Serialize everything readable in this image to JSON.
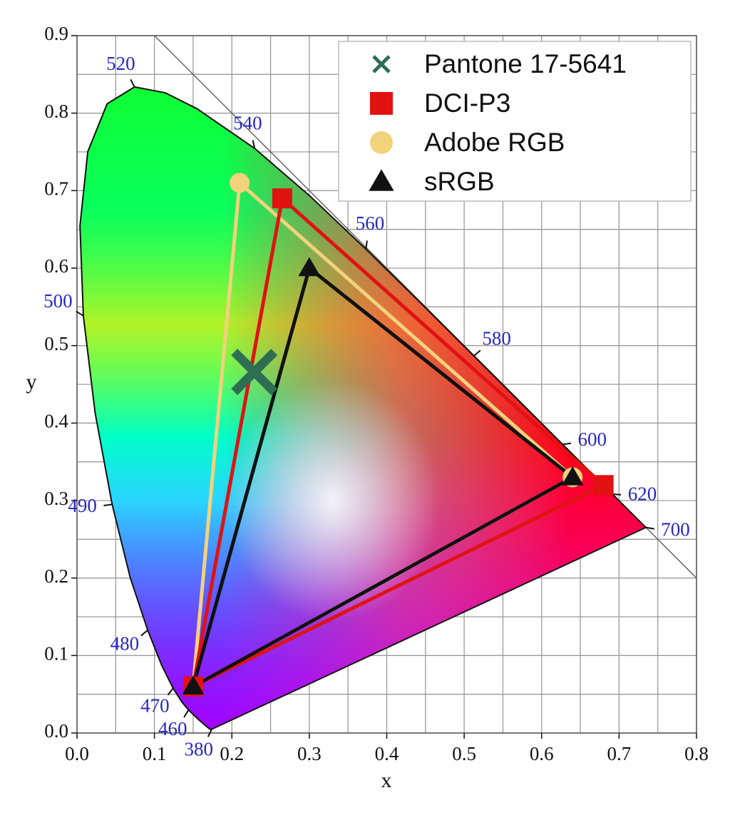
{
  "chart_data": {
    "type": "chromaticity",
    "x_label": "x",
    "y_label": "y",
    "xlim": [
      0,
      0.8
    ],
    "ylim": [
      0,
      0.9
    ],
    "xticks": [
      {
        "value": 0,
        "label": "0.0"
      },
      0.1,
      0.2,
      0.3,
      0.4,
      0.5,
      0.6,
      0.7,
      0.8
    ],
    "yticks": [
      {
        "value": 0,
        "label": "0.0"
      },
      0.1,
      0.2,
      0.3,
      0.4,
      0.5,
      0.6,
      0.7,
      0.8,
      0.9
    ],
    "grid": true,
    "minor_grid": true,
    "legend": "upper right",
    "locus": {
      "x": [
        0.1741,
        0.1714,
        0.1644,
        0.1566,
        0.144,
        0.1355,
        0.1241,
        0.1096,
        0.0913,
        0.0687,
        0.0454,
        0.0235,
        0.0082,
        0.0039,
        0.0139,
        0.0389,
        0.0743,
        0.1142,
        0.1547,
        0.2296,
        0.3016,
        0.3731,
        0.4441,
        0.5125,
        0.5752,
        0.627,
        0.6658,
        0.6915,
        0.719,
        0.7347
      ],
      "y": [
        0.005,
        0.0051,
        0.0109,
        0.0177,
        0.0297,
        0.0399,
        0.0578,
        0.0868,
        0.1327,
        0.2007,
        0.295,
        0.4127,
        0.5384,
        0.6548,
        0.7502,
        0.812,
        0.8338,
        0.8262,
        0.8059,
        0.7543,
        0.6923,
        0.6245,
        0.5547,
        0.4866,
        0.4242,
        0.3725,
        0.334,
        0.3083,
        0.2809,
        0.2653
      ]
    },
    "reference_line": {
      "x": [
        0.1,
        0.8
      ],
      "y": [
        0.9,
        0.2
      ]
    },
    "wavelength_labels": [
      {
        "label": "380",
        "x": 0.1741,
        "y": 0.005
      },
      {
        "label": "460",
        "x": 0.144,
        "y": 0.0297
      },
      {
        "label": "470",
        "x": 0.1241,
        "y": 0.0578
      },
      {
        "label": "480",
        "x": 0.0913,
        "y": 0.1327
      },
      {
        "label": "490",
        "x": 0.0454,
        "y": 0.295
      },
      {
        "label": "500",
        "x": 0.0082,
        "y": 0.5384
      },
      {
        "label": "520",
        "x": 0.0743,
        "y": 0.8338
      },
      {
        "label": "540",
        "x": 0.2296,
        "y": 0.7543
      },
      {
        "label": "560",
        "x": 0.3731,
        "y": 0.6245
      },
      {
        "label": "580",
        "x": 0.5125,
        "y": 0.4866
      },
      {
        "label": "600",
        "x": 0.627,
        "y": 0.3725
      },
      {
        "label": "620",
        "x": 0.6915,
        "y": 0.3083
      },
      {
        "label": "700",
        "x": 0.7347,
        "y": 0.2653
      }
    ],
    "series": [
      {
        "name": "Pantone 17-5641",
        "color": "#2e6e52",
        "marker": "x",
        "x": [
          0.229
        ],
        "y": [
          0.466
        ]
      },
      {
        "name": "DCI-P3",
        "color": "#e01212",
        "marker": "square",
        "x": [
          0.68,
          0.265,
          0.15
        ],
        "y": [
          0.32,
          0.69,
          0.06
        ]
      },
      {
        "name": "Adobe RGB",
        "color": "#f3d27c",
        "marker": "circle",
        "x": [
          0.64,
          0.21,
          0.15
        ],
        "y": [
          0.33,
          0.71,
          0.06
        ]
      },
      {
        "name": "sRGB",
        "color": "#111111",
        "marker": "triangle",
        "x": [
          0.64,
          0.3,
          0.15
        ],
        "y": [
          0.33,
          0.6,
          0.06
        ]
      }
    ]
  }
}
